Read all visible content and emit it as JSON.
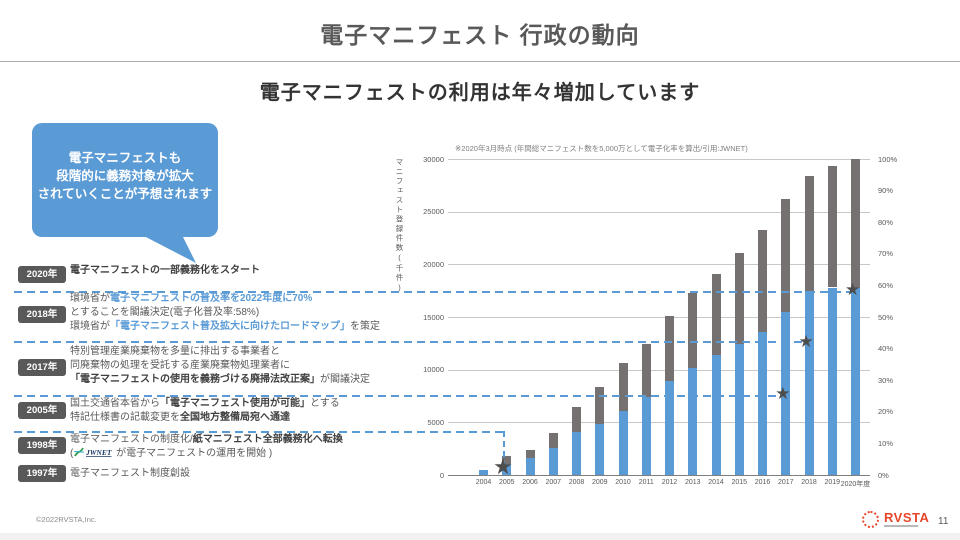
{
  "slide": {
    "title": "電子マニフェスト  行政の動向",
    "subtitle": "電子マニフェストの利用は年々増加しています"
  },
  "callout": {
    "bg_color": "#5B9BD5",
    "lines": [
      "電子マニフェストも",
      "段階的に義務対象が拡大",
      "されていくことが予想されます"
    ]
  },
  "timeline": {
    "rows": [
      {
        "year": "2020年",
        "lines": [
          [
            {
              "s": "b",
              "t": "電子マニフェストの一部義務化をスタート"
            }
          ]
        ]
      },
      {
        "year": "2018年",
        "lines": [
          [
            {
              "s": "n",
              "t": "環境省が"
            },
            {
              "s": "blue",
              "t": "電子マニフェストの普及率を2022年度に70%"
            }
          ],
          [
            {
              "s": "n",
              "t": "とすることを閣議決定(電子化普及率:58%)"
            }
          ],
          [
            {
              "s": "n",
              "t": "環境省が"
            },
            {
              "s": "blue",
              "t": "「電子マニフェスト普及拡大に向けたロードマップ」"
            },
            {
              "s": "n",
              "t": "を策定"
            }
          ]
        ]
      },
      {
        "year": "2017年",
        "lines": [
          [
            {
              "s": "n",
              "t": "特別管理産業廃棄物を多量に排出する事業者と"
            }
          ],
          [
            {
              "s": "n",
              "t": "同廃棄物の処理を受託する産業廃棄物処理業者に"
            }
          ],
          [
            {
              "s": "b",
              "t": "「電子マニフェストの使用を義務づける廃掃法改正案」"
            },
            {
              "s": "n",
              "t": "が閣議決定"
            }
          ]
        ]
      },
      {
        "year": "2005年",
        "lines": [
          [
            {
              "s": "n",
              "t": "国土交通省本省から"
            },
            {
              "s": "b",
              "t": "「電子マニフェスト使用が可能」"
            },
            {
              "s": "n",
              "t": "とする"
            }
          ],
          [
            {
              "s": "n",
              "t": "特記仕様書の記載変更を"
            },
            {
              "s": "b",
              "t": "全国地方整備局宛へ通達"
            }
          ]
        ]
      },
      {
        "year": "1998年",
        "lines": [
          [
            {
              "s": "n",
              "t": "電子マニフェストの制度化/"
            },
            {
              "s": "b",
              "t": "紙マニフェスト全部義務化へ転換"
            }
          ],
          [
            {
              "s": "n",
              "t": "("
            },
            {
              "s": "logo",
              "t": "JWNET"
            },
            {
              "s": "n",
              "t": " が電子マニフェストの運用を開始 )"
            }
          ]
        ]
      },
      {
        "year": "1997年",
        "lines": [
          [
            {
              "s": "n",
              "t": "電子マニフェスト制度創設"
            }
          ]
        ]
      }
    ]
  },
  "chart_data": {
    "type": "bar",
    "stacked": true,
    "title_note": "※2020年3月時点 (年間総マニフェスト数を5,000万として電子化率を算出/引用:JWNET)",
    "y_left_label": "マニフェスト登録件数(千件)",
    "y_left_range": [
      0,
      30000
    ],
    "y_left_tick_step": 5000,
    "y_right_range_pct": [
      0,
      100
    ],
    "y_right_tick_step_pct": 10,
    "grid": true,
    "legend": "none",
    "categories": [
      "2004",
      "2005",
      "2006",
      "2007",
      "2008",
      "2009",
      "2010",
      "2011",
      "2012",
      "2013",
      "2014",
      "2015",
      "2016",
      "2017",
      "2018",
      "2019",
      "2020年度"
    ],
    "series": [
      {
        "key": "blue-bottom",
        "color": "#5B9BD5",
        "values": [
          500,
          1000,
          1600,
          2600,
          4100,
          4800,
          6100,
          7400,
          8900,
          10200,
          11400,
          12400,
          13600,
          15500,
          17500,
          17800,
          17800
        ]
      },
      {
        "key": "gray-top",
        "color": "#767171",
        "values": [
          0,
          800,
          800,
          1400,
          2400,
          3600,
          4500,
          5000,
          6200,
          7100,
          7700,
          8700,
          9700,
          10700,
          10900,
          11500,
          12200
        ]
      }
    ],
    "stars": {
      "color": "#4d4d4d",
      "points": [
        {
          "category": "2005",
          "value": 600,
          "size": 22
        },
        {
          "category": "2017",
          "value": 7600,
          "size": 17
        },
        {
          "category": "2018",
          "value": 12500,
          "size": 17
        },
        {
          "category": "2020年度",
          "value": 17500,
          "size": 17
        }
      ]
    }
  },
  "footer": {
    "copyright": "©2022RVSTA,Inc.",
    "logo_text": "RVSTA",
    "page_number": "11"
  }
}
